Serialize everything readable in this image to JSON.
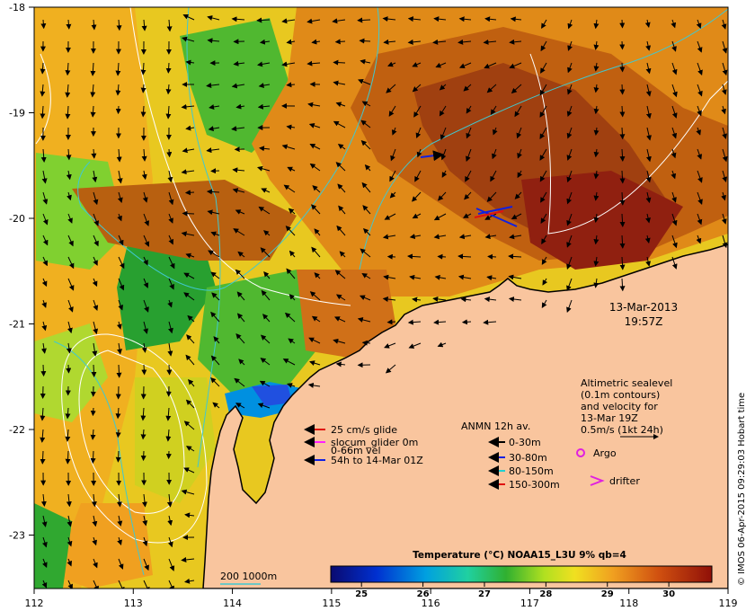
{
  "map": {
    "lon_ticks": [
      "112",
      "113",
      "114",
      "115",
      "116",
      "117",
      "118",
      "119"
    ],
    "lat_ticks": [
      "-18",
      "-19",
      "-20",
      "-21",
      "-22",
      "-23"
    ],
    "timestamp": {
      "date": "13-Mar-2013",
      "time": "19:57Z"
    },
    "altimetry_note": [
      "Altimetric sealevel",
      "(0.1m contours)",
      "and velocity for",
      "13-Mar 19Z",
      "0.5m/s (1kt 24h)"
    ],
    "argo_label": "Argo",
    "drifter_label": "drifter",
    "glider_legend": [
      {
        "text": "25 cm/s glide",
        "color": "#e01010"
      },
      {
        "text": "slocum_glider 0m",
        "color": "#ff20ff"
      },
      {
        "text": "0-66m vel",
        "color": ""
      },
      {
        "text": "54h to 14-Mar 01Z",
        "color": "#1020e0"
      }
    ],
    "anmn": {
      "title": "ANMN 12h av.",
      "items": [
        {
          "text": "0-30m",
          "color": "#000000"
        },
        {
          "text": "30-80m",
          "color": "#1020e0"
        },
        {
          "text": "80-150m",
          "color": "#20d0d0"
        },
        {
          "text": "150-300m",
          "color": "#e01010"
        }
      ]
    },
    "bathy_label": "200 1000m",
    "colorbar": {
      "title": "Temperature (°C) NOAA15_L3U 9% qb=4",
      "ticks": [
        "25",
        "26",
        "27",
        "28",
        "29",
        "30"
      ],
      "range": [
        24.5,
        30.7
      ]
    },
    "credit": "© IMOS 06-Apr-2015 09:29:03 Hobart time",
    "colors": {
      "land": "#f9c59e",
      "frame": "#000000",
      "contour": "#ffffff",
      "bathy": "#40c8d0"
    }
  }
}
